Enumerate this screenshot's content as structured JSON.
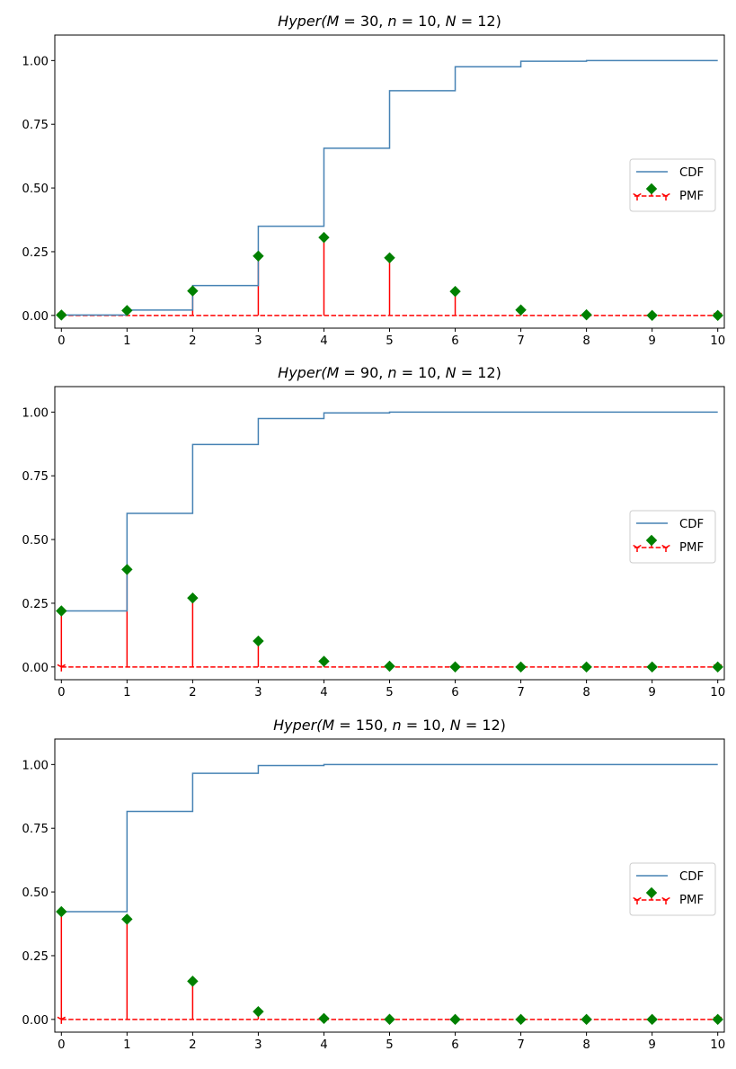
{
  "figure": {
    "colors": {
      "cdf": "#4682b4",
      "stem": "#ff0000",
      "marker": "#008000",
      "axes": "#000000",
      "legend_border": "#cccccc"
    }
  },
  "chart_data": [
    {
      "type": "line",
      "title": "Hyper(M = 30,  n = 10,  N = 12)",
      "title_parts": {
        "prefix": "Hyper(",
        "M_label": "M",
        "M_value": "30",
        "n_label": "n",
        "n_value": "10",
        "N_label": "N",
        "N_value": "12"
      },
      "xlabel": "",
      "ylabel": "",
      "xlim": [
        -0.1,
        10.1
      ],
      "ylim": [
        -0.05,
        1.1
      ],
      "xticks": [
        0,
        1,
        2,
        3,
        4,
        5,
        6,
        7,
        8,
        9,
        10
      ],
      "xtick_labels": [
        "0",
        "1",
        "2",
        "3",
        "4",
        "5",
        "6",
        "7",
        "8",
        "9",
        "10"
      ],
      "yticks": [
        0.0,
        0.25,
        0.5,
        0.75,
        1.0
      ],
      "ytick_labels": [
        "0.00",
        "0.25",
        "0.50",
        "0.75",
        "1.00"
      ],
      "grid": false,
      "legend": {
        "position": "center-right",
        "entries": [
          "CDF",
          "PMF"
        ]
      },
      "x": [
        0,
        1,
        2,
        3,
        4,
        5,
        6,
        7,
        8,
        9,
        10
      ],
      "series": [
        {
          "name": "CDF",
          "kind": "step",
          "values": [
            0.0015,
            0.0209,
            0.117,
            0.35,
            0.6558,
            0.8817,
            0.9758,
            0.9973,
            0.9998,
            1.0,
            1.0
          ]
        },
        {
          "name": "PMF",
          "kind": "stem",
          "values": [
            0.0015,
            0.0194,
            0.0961,
            0.233,
            0.3058,
            0.2259,
            0.0941,
            0.0215,
            0.0025,
            0.0001,
            0.0
          ]
        }
      ]
    },
    {
      "type": "line",
      "title": "Hyper(M = 90,  n = 10,  N = 12)",
      "title_parts": {
        "prefix": "Hyper(",
        "M_label": "M",
        "M_value": "90",
        "n_label": "n",
        "n_value": "10",
        "N_label": "N",
        "N_value": "12"
      },
      "xlabel": "",
      "ylabel": "",
      "xlim": [
        -0.1,
        10.1
      ],
      "ylim": [
        -0.05,
        1.1
      ],
      "xticks": [
        0,
        1,
        2,
        3,
        4,
        5,
        6,
        7,
        8,
        9,
        10
      ],
      "xtick_labels": [
        "0",
        "1",
        "2",
        "3",
        "4",
        "5",
        "6",
        "7",
        "8",
        "9",
        "10"
      ],
      "yticks": [
        0.0,
        0.25,
        0.5,
        0.75,
        1.0
      ],
      "ytick_labels": [
        "0.00",
        "0.25",
        "0.50",
        "0.75",
        "1.00"
      ],
      "grid": false,
      "legend": {
        "position": "center-right",
        "entries": [
          "CDF",
          "PMF"
        ]
      },
      "x": [
        0,
        1,
        2,
        3,
        4,
        5,
        6,
        7,
        8,
        9,
        10
      ],
      "series": [
        {
          "name": "CDF",
          "kind": "step",
          "values": [
            0.2199,
            0.6025,
            0.873,
            0.9746,
            0.9968,
            0.9997,
            1.0,
            1.0,
            1.0,
            1.0,
            1.0
          ]
        },
        {
          "name": "PMF",
          "kind": "stem",
          "values": [
            0.2199,
            0.3825,
            0.2705,
            0.1016,
            0.0222,
            0.0029,
            0.0002,
            0.0,
            0.0,
            0.0,
            0.0
          ]
        }
      ]
    },
    {
      "type": "line",
      "title": "Hyper(M = 150,  n = 10,  N = 12)",
      "title_parts": {
        "prefix": "Hyper(",
        "M_label": "M",
        "M_value": "150",
        "n_label": "n",
        "n_value": "10",
        "N_label": "N",
        "N_value": "12"
      },
      "xlabel": "",
      "ylabel": "",
      "xlim": [
        -0.1,
        10.1
      ],
      "ylim": [
        -0.05,
        1.1
      ],
      "xticks": [
        0,
        1,
        2,
        3,
        4,
        5,
        6,
        7,
        8,
        9,
        10
      ],
      "xtick_labels": [
        "0",
        "1",
        "2",
        "3",
        "4",
        "5",
        "6",
        "7",
        "8",
        "9",
        "10"
      ],
      "yticks": [
        0.0,
        0.25,
        0.5,
        0.75,
        1.0
      ],
      "ytick_labels": [
        "0.00",
        "0.25",
        "0.50",
        "0.75",
        "1.00"
      ],
      "grid": false,
      "legend": {
        "position": "center-right",
        "entries": [
          "CDF",
          "PMF"
        ]
      },
      "x": [
        0,
        1,
        2,
        3,
        4,
        5,
        6,
        7,
        8,
        9,
        10
      ],
      "series": [
        {
          "name": "CDF",
          "kind": "step",
          "values": [
            0.4227,
            0.8159,
            0.9656,
            0.9961,
            0.9997,
            1.0,
            1.0,
            1.0,
            1.0,
            1.0,
            1.0
          ]
        },
        {
          "name": "PMF",
          "kind": "stem",
          "values": [
            0.4227,
            0.3932,
            0.1497,
            0.0305,
            0.0036,
            0.0003,
            0.0,
            0.0,
            0.0,
            0.0,
            0.0
          ]
        }
      ]
    }
  ]
}
